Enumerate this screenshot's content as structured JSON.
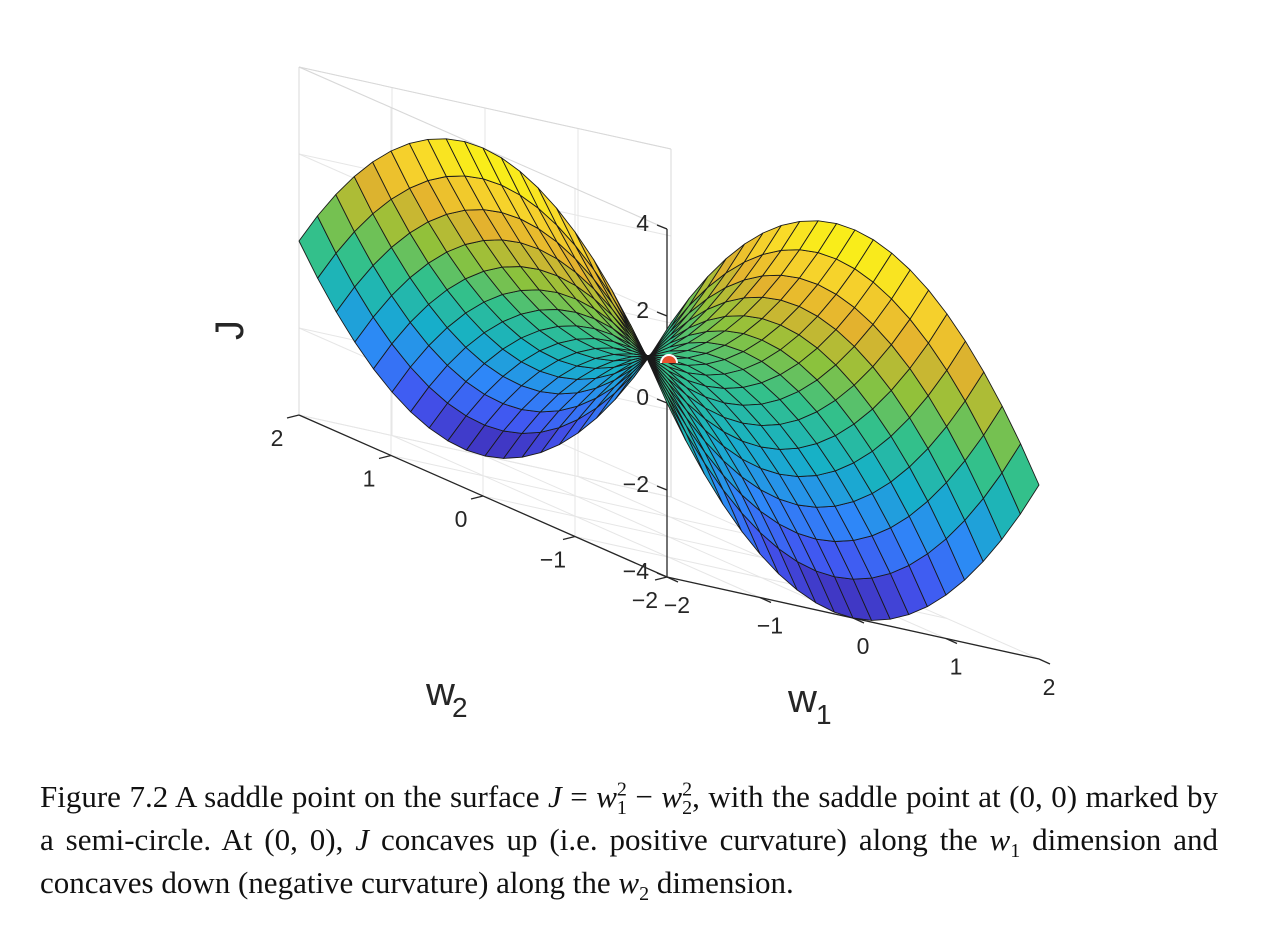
{
  "chart_data": {
    "type": "surface",
    "function": "J = w1^2 - w2^2",
    "x": [
      -2,
      -1.8,
      -1.6,
      -1.4,
      -1.2,
      -1.0,
      -0.8,
      -0.6,
      -0.4,
      -0.2,
      0,
      0.2,
      0.4,
      0.6,
      0.8,
      1.0,
      1.2,
      1.4,
      1.6,
      1.8,
      2.0
    ],
    "y": [
      -2,
      -1.8,
      -1.6,
      -1.4,
      -1.2,
      -1.0,
      -0.8,
      -0.6,
      -0.4,
      -0.2,
      0,
      0.2,
      0.4,
      0.6,
      0.8,
      1.0,
      1.2,
      1.4,
      1.6,
      1.8,
      2.0
    ],
    "xlabel": "w",
    "xlabel_sub": "1",
    "ylabel": "w",
    "ylabel_sub": "2",
    "zlabel": "J",
    "xlim": [
      -2,
      2
    ],
    "ylim": [
      -2,
      2
    ],
    "zlim": [
      -4,
      4
    ],
    "xticks": [
      "−2",
      "−1",
      "0",
      "1",
      "2"
    ],
    "yticks": [
      "−2",
      "−1",
      "0",
      "1",
      "2"
    ],
    "zticks": [
      "−4",
      "−2",
      "0",
      "2",
      "4"
    ],
    "xtick_values": [
      -2,
      -1,
      0,
      1,
      2
    ],
    "ytick_values": [
      -2,
      -1,
      0,
      1,
      2
    ],
    "ztick_values": [
      -4,
      -2,
      0,
      2,
      4
    ],
    "colormap": "parula",
    "colormap_stops": [
      "#3e26a8",
      "#4353f0",
      "#2e87f8",
      "#16b0c8",
      "#33c08b",
      "#8fc23a",
      "#e3b22e",
      "#f9d72b",
      "#f9fb0e"
    ],
    "grid": true,
    "saddle_point": {
      "x": 0,
      "y": 0,
      "z": 0,
      "marker": "semi-circle",
      "color": "#e8512e"
    }
  },
  "caption": {
    "lead": "Figure 7.2  A saddle point on the surface ",
    "j": "J",
    "eq": " = ",
    "w": "w",
    "s1": "1",
    "p2": "2",
    "minus": " − ",
    "s2": "2",
    "p2b": "2",
    "rest1": ", with the saddle point at (0, 0) marked by a semi-circle. At (0, 0), ",
    "j2": "J",
    "rest2": " concaves up (i.e. positive curvature) along the ",
    "w_a": "w",
    "sa": "1",
    "rest3": " dimension and concaves down (negative curvature) along the ",
    "w_b": "w",
    "sb": "2",
    "rest4": " dimension."
  }
}
